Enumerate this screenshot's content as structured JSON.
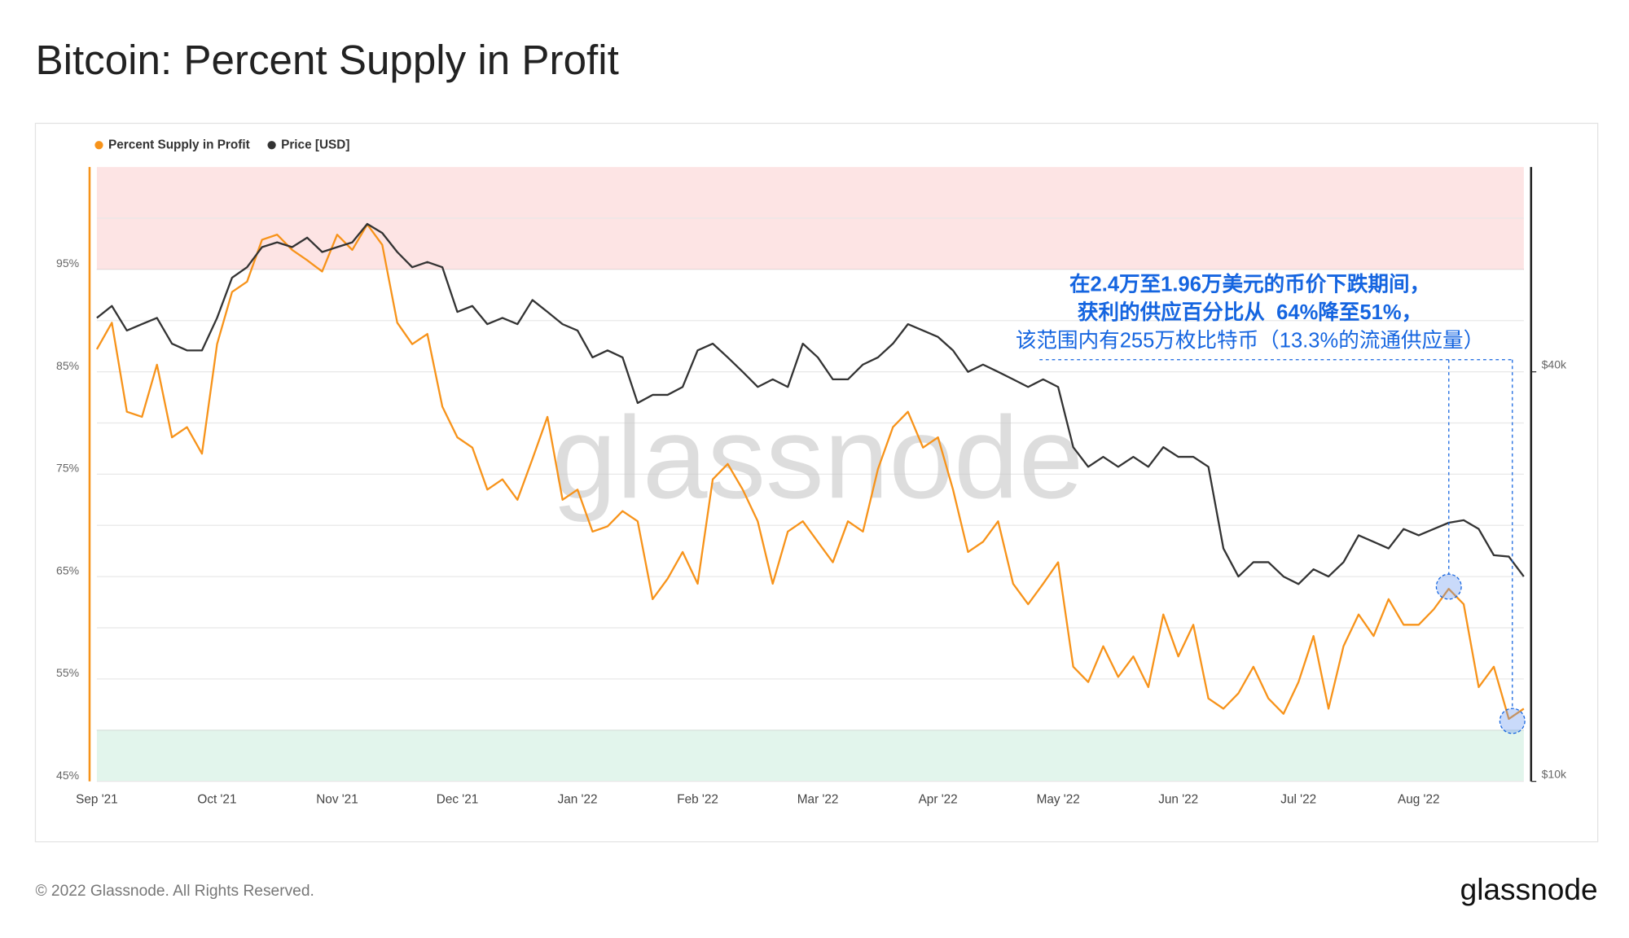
{
  "chart_data": {
    "type": "line",
    "title": "Bitcoin: Percent Supply in Profit",
    "copyright": "© 2022 Glassnode. All Rights Reserved.",
    "logo": "glassnode",
    "watermark": "glassnode",
    "annotation": [
      "在2.4万至1.96万美元的币价下跌期间，",
      "获利的供应百分比从  64%降至51%，",
      "该范围内有255万枚比特币（13.3%的流通供应量）"
    ],
    "legend": "top-left",
    "categories": [
      "Sep '21",
      null,
      null,
      null,
      null,
      null,
      null,
      null,
      "Oct '21",
      null,
      null,
      null,
      null,
      null,
      null,
      null,
      "Nov '21",
      null,
      null,
      null,
      null,
      null,
      null,
      null,
      "Dec '21",
      null,
      null,
      null,
      null,
      null,
      null,
      null,
      "Jan '22",
      null,
      null,
      null,
      null,
      null,
      null,
      null,
      "Feb '22",
      null,
      null,
      null,
      null,
      null,
      null,
      null,
      "Mar '22",
      null,
      null,
      null,
      null,
      null,
      null,
      null,
      "Apr '22",
      null,
      null,
      null,
      null,
      null,
      null,
      null,
      "May '22",
      null,
      null,
      null,
      null,
      null,
      null,
      null,
      "Jun '22",
      null,
      null,
      null,
      null,
      null,
      null,
      null,
      "Jul '22",
      null,
      null,
      null,
      null,
      null,
      null,
      null,
      "Aug '22",
      null,
      null,
      null,
      null,
      null,
      null,
      null
    ],
    "series": [
      {
        "name": "Percent Supply in Profit",
        "color": "#f7931a",
        "values": [
          87.2,
          89.8,
          81.1,
          80.6,
          85.7,
          78.6,
          79.6,
          77.0,
          87.7,
          92.8,
          93.8,
          97.9,
          98.4,
          96.9,
          95.9,
          94.8,
          98.4,
          96.9,
          99.4,
          97.4,
          89.8,
          87.7,
          88.7,
          81.6,
          78.6,
          77.6,
          73.5,
          74.5,
          72.5,
          76.5,
          80.6,
          72.5,
          73.5,
          69.4,
          69.9,
          71.4,
          70.4,
          62.8,
          64.8,
          67.4,
          64.3,
          74.5,
          76.0,
          73.5,
          70.4,
          64.3,
          69.4,
          70.4,
          68.4,
          66.4,
          70.4,
          69.4,
          75.5,
          79.6,
          81.1,
          77.6,
          78.6,
          73.5,
          67.4,
          68.4,
          70.4,
          64.3,
          62.3,
          64.3,
          66.4,
          56.2,
          54.7,
          58.2,
          55.2,
          57.2,
          54.2,
          61.3,
          57.2,
          60.3,
          53.1,
          52.1,
          53.6,
          56.2,
          53.1,
          51.6,
          54.7,
          59.2,
          52.1,
          58.2,
          61.3,
          59.2,
          62.8,
          60.3,
          60.3,
          61.8,
          63.8,
          62.3,
          54.2,
          56.2,
          51.1,
          52.1
        ]
      },
      {
        "name": "Price [USD]",
        "color": "#333333",
        "axis": "y2",
        "values": [
          48000,
          50000,
          46000,
          47000,
          48000,
          44000,
          43000,
          43000,
          48000,
          55000,
          57000,
          61000,
          62000,
          61000,
          63000,
          60000,
          61000,
          62000,
          66000,
          64000,
          60000,
          57000,
          58000,
          57000,
          49000,
          50000,
          47000,
          48000,
          47000,
          51000,
          49000,
          47000,
          46000,
          42000,
          43000,
          42000,
          36000,
          37000,
          37000,
          38000,
          43000,
          44000,
          42000,
          40000,
          38000,
          39000,
          38000,
          44000,
          42000,
          39000,
          39000,
          41000,
          42000,
          44000,
          47000,
          46000,
          45000,
          43000,
          40000,
          41000,
          40000,
          39000,
          38000,
          39000,
          38000,
          31000,
          29000,
          30000,
          29000,
          30000,
          29000,
          31000,
          30000,
          30000,
          29000,
          22000,
          20000,
          21000,
          21000,
          20000,
          19500,
          20500,
          20000,
          21000,
          23000,
          22500,
          22000,
          23500,
          23000,
          23500,
          24000,
          24200,
          23500,
          21500,
          21400,
          20000
        ]
      }
    ],
    "ylim": [
      45,
      105
    ],
    "yticks": [
      {
        "value": 45,
        "label": "45%"
      },
      {
        "value": 55,
        "label": "55%"
      },
      {
        "value": 65,
        "label": "65%"
      },
      {
        "value": 75,
        "label": "75%"
      },
      {
        "value": 85,
        "label": "85%"
      },
      {
        "value": 95,
        "label": "95%"
      }
    ],
    "ygrid": [
      50,
      60,
      70,
      80,
      90,
      100
    ],
    "y2lim": [
      10000,
      80000
    ],
    "y2scale": "log",
    "y2ticks": [
      {
        "value": 10000,
        "label": "$10k"
      },
      {
        "value": 40000,
        "label": "$40k"
      }
    ],
    "bands": [
      {
        "from": 95,
        "to": 105,
        "color": "#fde4e4",
        "edge": "#e06666"
      },
      {
        "from": 45,
        "to": 50,
        "color": "#e2f5ec",
        "edge": "#8cc7a8"
      }
    ]
  }
}
